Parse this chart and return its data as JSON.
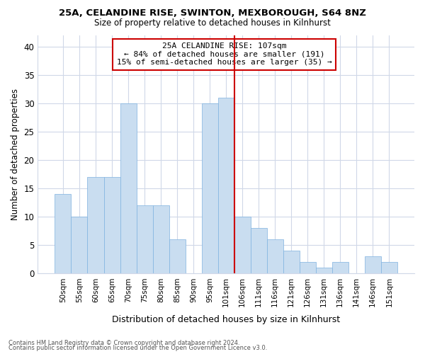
{
  "title1": "25A, CELANDINE RISE, SWINTON, MEXBOROUGH, S64 8NZ",
  "title2": "Size of property relative to detached houses in Kilnhurst",
  "xlabel": "Distribution of detached houses by size in Kilnhurst",
  "ylabel": "Number of detached properties",
  "footnote1": "Contains HM Land Registry data © Crown copyright and database right 2024.",
  "footnote2": "Contains public sector information licensed under the Open Government Licence v3.0.",
  "annotation_title": "25A CELANDINE RISE: 107sqm",
  "annotation_line2": "← 84% of detached houses are smaller (191)",
  "annotation_line3": "15% of semi-detached houses are larger (35) →",
  "bar_labels": [
    "50sqm",
    "55sqm",
    "60sqm",
    "65sqm",
    "70sqm",
    "75sqm",
    "80sqm",
    "85sqm",
    "90sqm",
    "95sqm",
    "101sqm",
    "106sqm",
    "111sqm",
    "116sqm",
    "121sqm",
    "126sqm",
    "131sqm",
    "136sqm",
    "141sqm",
    "146sqm",
    "151sqm"
  ],
  "bar_values": [
    14,
    10,
    17,
    17,
    30,
    12,
    12,
    6,
    0,
    30,
    31,
    10,
    8,
    6,
    4,
    2,
    1,
    2,
    0,
    3,
    2
  ],
  "highlight_index": 11,
  "bar_color_normal": "#c9ddf0",
  "bar_edge_color": "#7fb2e0",
  "highlight_bar_edge_color": "#cc0000",
  "annotation_box_color": "#cc0000",
  "ylim": [
    0,
    42
  ],
  "yticks": [
    0,
    5,
    10,
    15,
    20,
    25,
    30,
    35,
    40
  ],
  "grid_color": "#d0d8e8",
  "background_color": "#ffffff"
}
